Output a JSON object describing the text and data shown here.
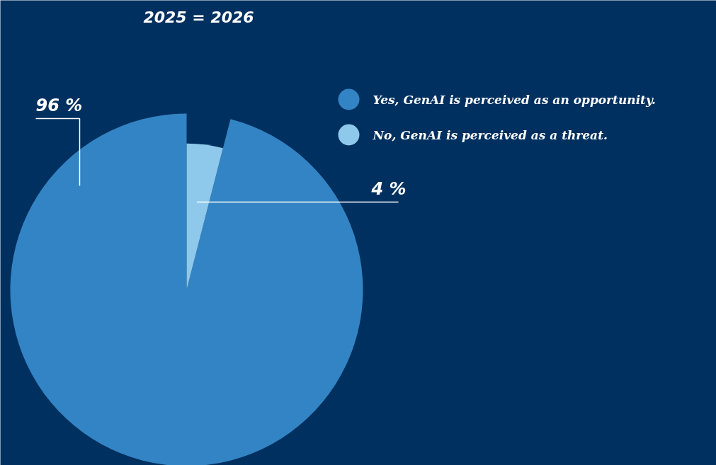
{
  "chart_data": {
    "type": "pie",
    "title": "2025 = 2026",
    "categories": [
      "Yes, GenAI is perceived as an opportunity.",
      "No,  GenAI is perceived as a threat."
    ],
    "values": [
      96,
      4
    ],
    "colors": [
      "#3384c4",
      "#8ec8ea"
    ],
    "value_labels": [
      "96 %",
      "4 %"
    ],
    "legend": "top right"
  }
}
